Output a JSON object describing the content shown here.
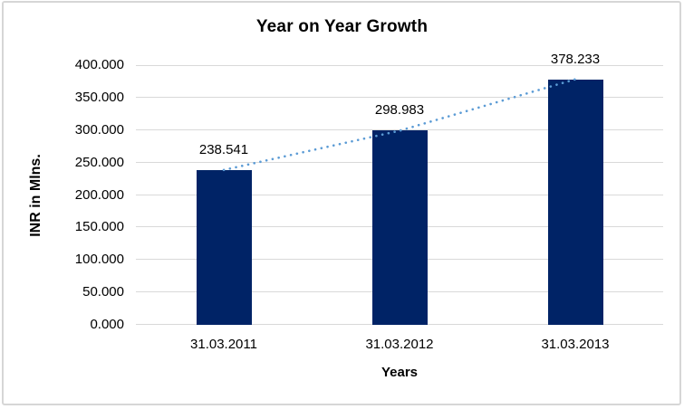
{
  "chart_data": {
    "type": "bar",
    "title": "Year on Year Growth",
    "xlabel": "Years",
    "ylabel": "INR in Mlns.",
    "categories": [
      "31.03.2011",
      "31.03.2012",
      "31.03.2013"
    ],
    "values": [
      238.541,
      298.983,
      378.233
    ],
    "value_labels": [
      "238.541",
      "298.983",
      "378.233"
    ],
    "ylim": [
      0,
      400
    ],
    "ytick_step": 50,
    "ytick_labels": [
      "0.000",
      "50.000",
      "100.000",
      "150.000",
      "200.000",
      "250.000",
      "300.000",
      "350.000",
      "400.000"
    ],
    "grid": true,
    "legend": "none",
    "trendline": {
      "style": "dotted",
      "color": "#5B9BD5",
      "description": "dotted trend line connecting bar tops from first to last category"
    },
    "colors": {
      "bar": "#002366",
      "gridline": "#D9D9D9",
      "text": "#000000",
      "chart_border": "#D6D6D6",
      "background": "#FFFFFF"
    }
  }
}
